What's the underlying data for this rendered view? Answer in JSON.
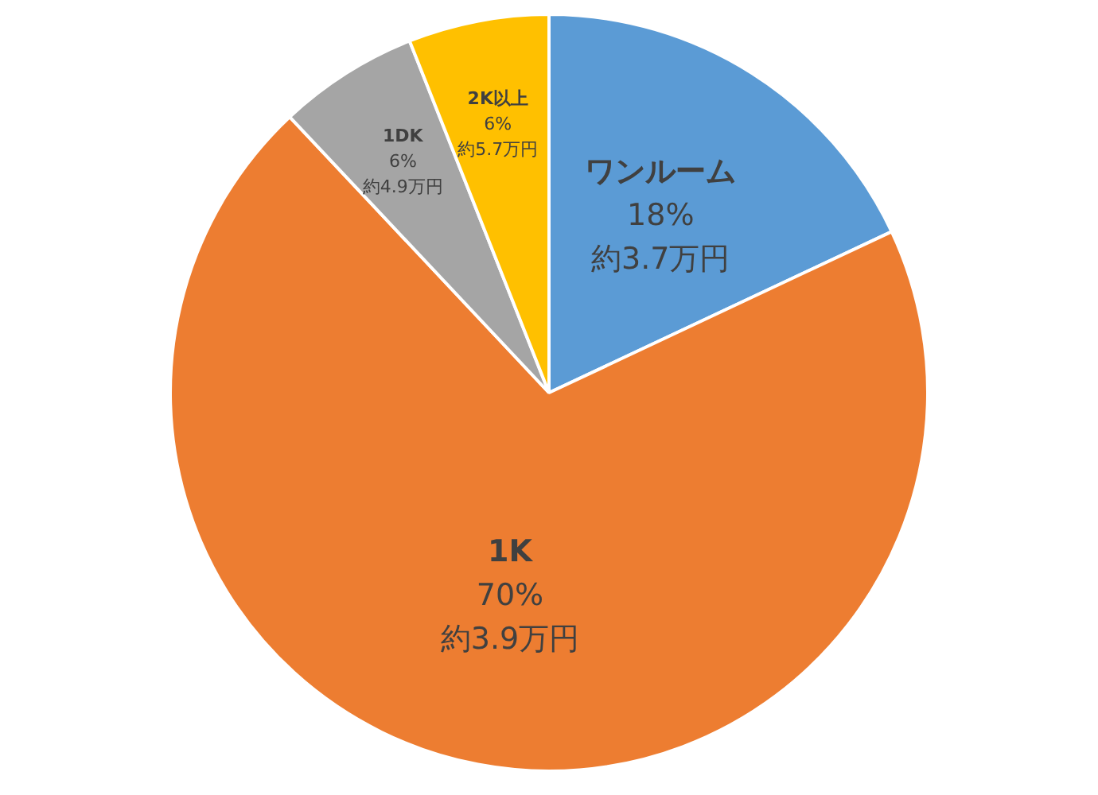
{
  "chart_data": {
    "type": "pie",
    "categories": [
      "ワンルーム",
      "1K",
      "1DK",
      "2K以上"
    ],
    "values": [
      18,
      70,
      6,
      6
    ],
    "colors": [
      "#5b9bd5",
      "#ed7d31",
      "#a5a5a5",
      "#ffc000"
    ],
    "value_labels": [
      "18%",
      "70%",
      "6%",
      "6%"
    ],
    "annotations": [
      "約3.7万円",
      "約3.9万円",
      "約4.9万円",
      "約5.7万円"
    ],
    "legend": false
  }
}
